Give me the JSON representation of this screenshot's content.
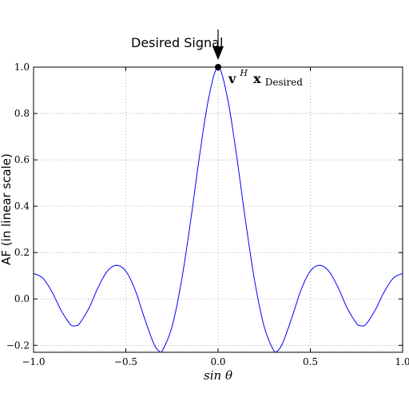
{
  "chart_data": {
    "type": "line",
    "title": "",
    "xlabel": "sin θ",
    "ylabel": "AF (in linear scale)",
    "xlim": [
      -1.0,
      1.0
    ],
    "ylim": [
      -0.23,
      1.0
    ],
    "xticks": [
      -1.0,
      -0.5,
      0.0,
      0.5,
      1.0
    ],
    "xtick_labels": [
      "−1.0",
      "−0.5",
      "0.0",
      "0.5",
      "1.0"
    ],
    "yticks": [
      -0.2,
      0.0,
      0.2,
      0.4,
      0.6,
      0.8,
      1.0
    ],
    "ytick_labels": [
      "−0.2",
      "0.0",
      "0.2",
      "0.4",
      "0.6",
      "0.8",
      "1.0"
    ],
    "grid": true,
    "series": [
      {
        "color": "#0000ff",
        "x": [
          -1.0,
          -0.95,
          -0.9,
          -0.85,
          -0.8,
          -0.77,
          -0.75,
          -0.7,
          -0.65,
          -0.6,
          -0.55,
          -0.5,
          -0.45,
          -0.4,
          -0.35,
          -0.32,
          -0.3,
          -0.25,
          -0.2,
          -0.15,
          -0.1,
          -0.05,
          0.0,
          0.05,
          0.1,
          0.15,
          0.2,
          0.25,
          0.3,
          0.32,
          0.35,
          0.4,
          0.45,
          0.5,
          0.55,
          0.6,
          0.65,
          0.7,
          0.75,
          0.77,
          0.8,
          0.85,
          0.9,
          0.95,
          1.0
        ],
        "y": [
          0.11,
          0.09,
          0.03,
          -0.05,
          -0.11,
          -0.115,
          -0.105,
          -0.04,
          0.05,
          0.12,
          0.145,
          0.12,
          0.04,
          -0.08,
          -0.19,
          -0.225,
          -0.22,
          -0.12,
          0.07,
          0.33,
          0.62,
          0.87,
          1.0,
          0.87,
          0.62,
          0.33,
          0.07,
          -0.12,
          -0.22,
          -0.225,
          -0.19,
          -0.08,
          0.04,
          0.12,
          0.145,
          0.12,
          0.05,
          -0.04,
          -0.105,
          -0.115,
          -0.11,
          -0.05,
          0.03,
          0.09,
          0.11
        ]
      }
    ],
    "marker": {
      "x": 0.0,
      "y": 1.0,
      "color": "#000000"
    },
    "annotations": {
      "arrow_label": "Desired Signal",
      "point_label_main": "v",
      "point_label_sup": "H",
      "point_label_vec": "x",
      "point_label_sub": "Desired"
    }
  }
}
